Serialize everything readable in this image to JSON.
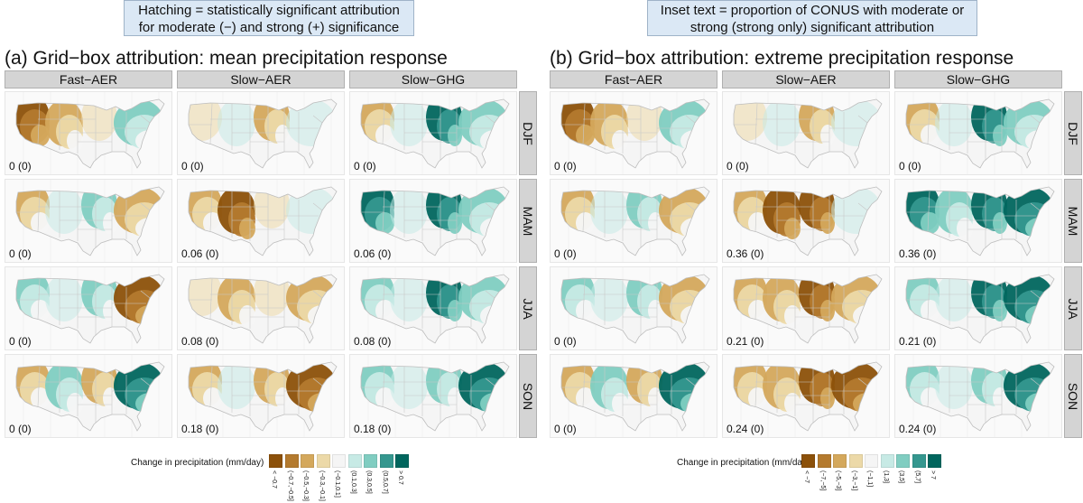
{
  "notes": {
    "left": [
      "Hatching = statistically significant attribution",
      "for moderate (−) and strong (+) significance"
    ],
    "right": [
      "Inset text = proportion of CONUS with moderate or",
      "strong (strong only) significant attribution"
    ]
  },
  "panels": [
    {
      "title": "(a) Grid−box attribution: mean precipitation response",
      "columns": [
        "Fast−AER",
        "Slow−AER",
        "Slow−GHG"
      ],
      "rows": [
        "DJF",
        "MAM",
        "JJA",
        "SON"
      ],
      "insets": [
        [
          "0 (0)",
          "0 (0)",
          "0 (0)"
        ],
        [
          "0 (0)",
          "0.06 (0)",
          "0.06 (0)"
        ],
        [
          "0 (0)",
          "0.08 (0)",
          "0.08 (0)"
        ],
        [
          "0 (0)",
          "0.18 (0)",
          "0.18 (0)"
        ]
      ],
      "legend": {
        "title": "Change in precipitation (mm/day)",
        "labels": [
          "< −0.7",
          "(−0.7,−0.5]",
          "(−0.5,−0.3]",
          "(−0.3,−0.1]",
          "(−0.1,0.1]",
          "(0.1,0.3]",
          "(0.3,0.5]",
          "(0.5,0.7]",
          "> 0.7"
        ]
      }
    },
    {
      "title": "(b) Grid−box attribution: extreme precipitation response",
      "columns": [
        "Fast−AER",
        "Slow−AER",
        "Slow−GHG"
      ],
      "rows": [
        "DJF",
        "MAM",
        "JJA",
        "SON"
      ],
      "insets": [
        [
          "0 (0)",
          "0 (0)",
          "0 (0)"
        ],
        [
          "0 (0)",
          "0.36 (0)",
          "0.36 (0)"
        ],
        [
          "0 (0)",
          "0.21 (0)",
          "0.21 (0)"
        ],
        [
          "0 (0)",
          "0.24 (0)",
          "0.24 (0)"
        ]
      ],
      "legend": {
        "title": "Change in precipitation (mm/day)",
        "labels": [
          "< −7",
          "(−7,−5]",
          "(−5,−3]",
          "(−3,−1]",
          "(−1,1]",
          "(1,3]",
          "(3,5]",
          "(5,7]",
          "> 7"
        ]
      }
    }
  ],
  "colors": {
    "scale": [
      "#8c510a",
      "#b47a2e",
      "#d4a85c",
      "#ecd9a8",
      "#f5f5f5",
      "#c7eae5",
      "#80cdc1",
      "#35978f",
      "#01665e"
    ],
    "state_border": "#c8c8c8",
    "strip": "#d4d4d4"
  },
  "map_patterns": [
    [
      [
        -2,
        -1,
        0,
        1
      ],
      [
        0,
        0,
        -1,
        0
      ],
      [
        -1,
        0,
        2,
        1
      ]
    ],
    [
      [
        -1,
        0,
        1,
        -1
      ],
      [
        -1,
        -2,
        0,
        0
      ],
      [
        2,
        0,
        2,
        1
      ]
    ],
    [
      [
        1,
        0,
        1,
        -2
      ],
      [
        0,
        -1,
        0,
        -1
      ],
      [
        1,
        0,
        2,
        1
      ]
    ],
    [
      [
        -1,
        1,
        -1,
        2
      ],
      [
        -1,
        0,
        -1,
        -2
      ],
      [
        1,
        0,
        1,
        2
      ]
    ]
  ],
  "map_patterns_b": [
    [
      [
        -2,
        -1,
        0,
        1
      ],
      [
        0,
        0,
        -1,
        0
      ],
      [
        -1,
        0,
        2,
        1
      ]
    ],
    [
      [
        -1,
        0,
        1,
        -1
      ],
      [
        -1,
        -2,
        -2,
        0
      ],
      [
        2,
        1,
        2,
        2
      ]
    ],
    [
      [
        1,
        0,
        1,
        -1
      ],
      [
        -1,
        -1,
        -2,
        -1
      ],
      [
        1,
        0,
        2,
        2
      ]
    ],
    [
      [
        -1,
        1,
        -1,
        2
      ],
      [
        -1,
        -1,
        -2,
        -2
      ],
      [
        1,
        0,
        1,
        2
      ]
    ]
  ]
}
